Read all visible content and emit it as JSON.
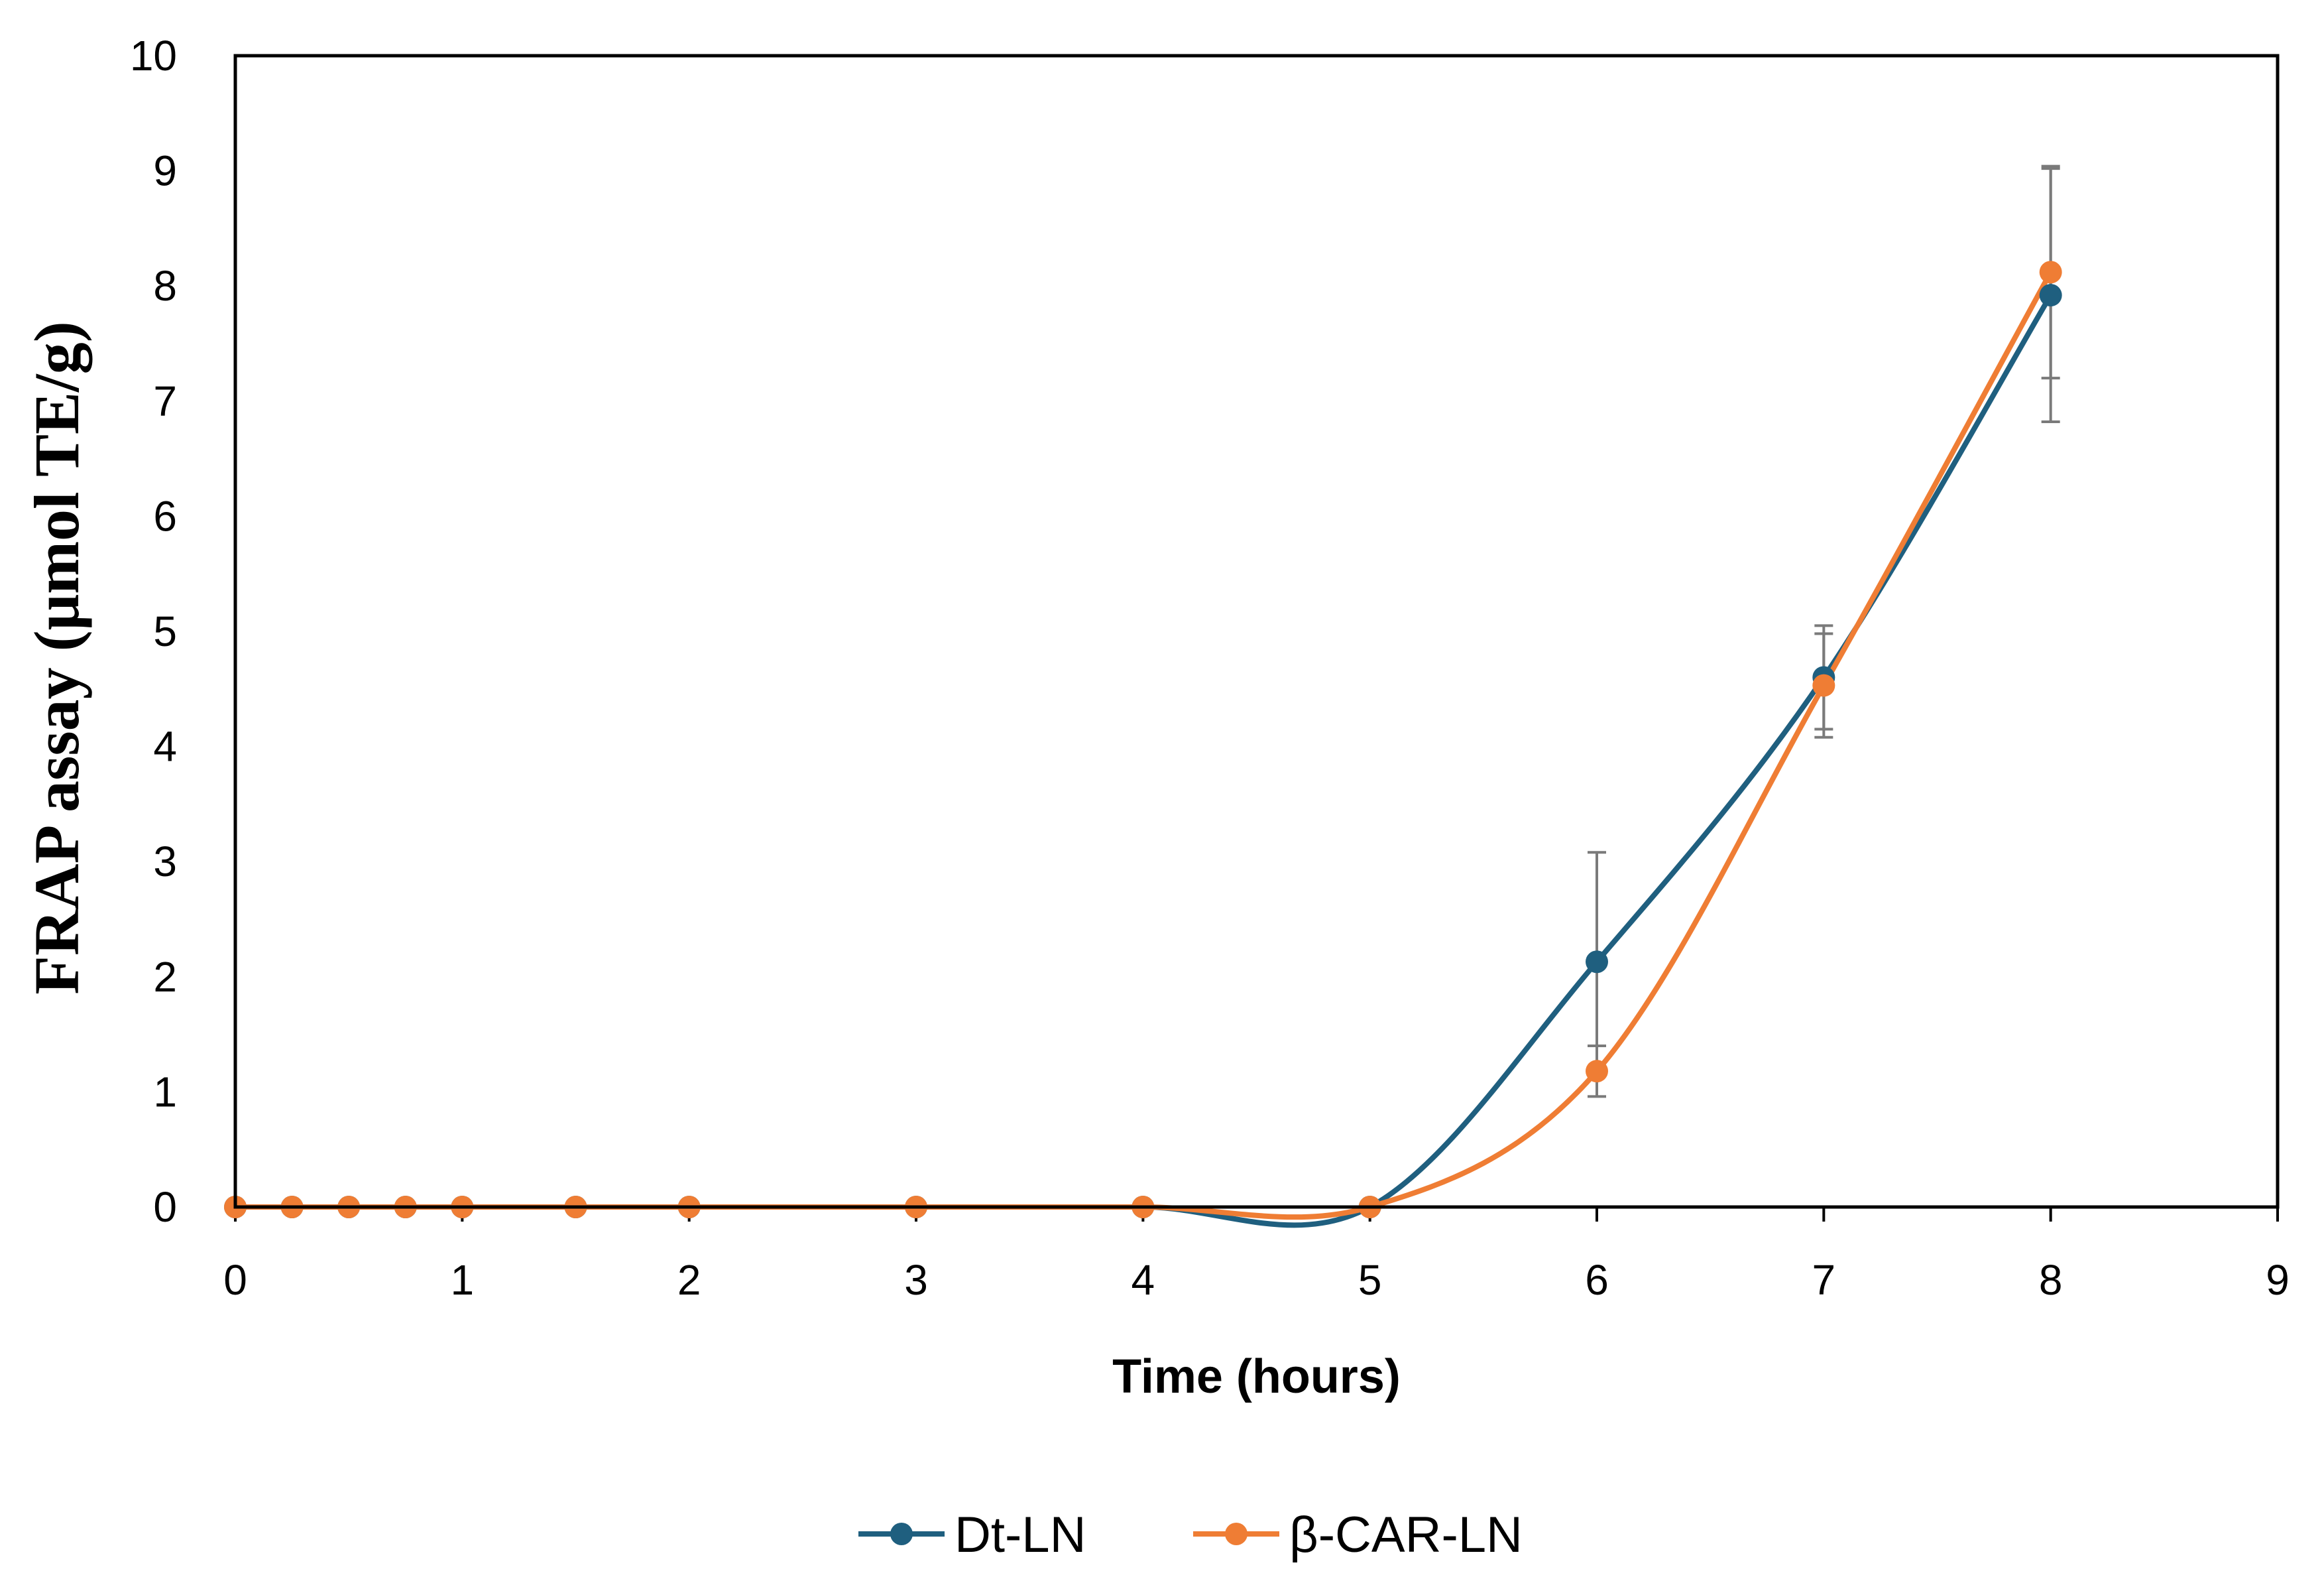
{
  "chart_data": {
    "type": "line",
    "title": "",
    "xlabel": "Time (hours)",
    "ylabel": "FRAP assay (μmol TE/g)",
    "xlim": [
      0,
      9
    ],
    "ylim": [
      0,
      10
    ],
    "xticks": [
      "0",
      "1",
      "2",
      "3",
      "4",
      "5",
      "6",
      "7",
      "8",
      "9"
    ],
    "yticks": [
      "0",
      "1",
      "2",
      "3",
      "4",
      "5",
      "6",
      "7",
      "8",
      "9",
      "10"
    ],
    "grid": false,
    "smooth": true,
    "legend_position": "bottom",
    "series": [
      {
        "name": "Dt-LN",
        "color": "#1f5f7f",
        "x": [
          0,
          0.25,
          0.5,
          0.75,
          1,
          1.5,
          2,
          3,
          4,
          5,
          6,
          7,
          8
        ],
        "y": [
          0,
          0,
          0,
          0,
          0,
          0,
          0,
          0,
          0,
          0,
          2.13,
          4.6,
          7.92
        ],
        "error": [
          0,
          0,
          0,
          0,
          0,
          0,
          0,
          0,
          0,
          0,
          0.95,
          0.45,
          1.1
        ]
      },
      {
        "name": "β-CAR-LN",
        "color": "#ef7d34",
        "x": [
          0,
          0.25,
          0.5,
          0.75,
          1,
          1.5,
          2,
          3,
          4,
          5,
          6,
          7,
          8
        ],
        "y": [
          0,
          0,
          0,
          0,
          0,
          0,
          0,
          0,
          0,
          0,
          1.18,
          4.53,
          8.12
        ],
        "error": [
          0,
          0,
          0,
          0,
          0,
          0,
          0,
          0,
          0,
          0,
          0.22,
          0.45,
          0.92
        ]
      }
    ]
  }
}
